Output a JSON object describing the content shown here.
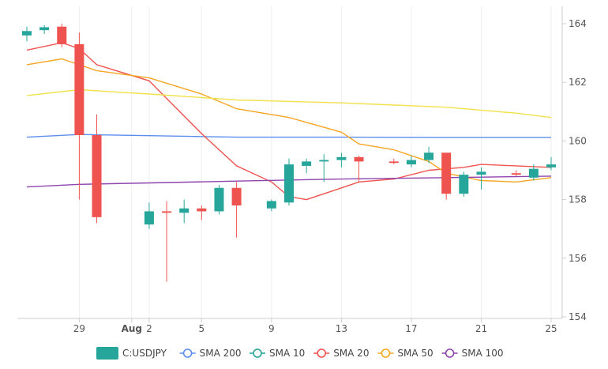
{
  "chart_data": {
    "type": "candlestick",
    "x_axis": {
      "tick_labels": [
        {
          "d": 29,
          "label": "29"
        },
        {
          "d": 32,
          "label": "Aug"
        },
        {
          "d": 33,
          "label": "2"
        },
        {
          "d": 36,
          "label": "5"
        },
        {
          "d": 40,
          "label": "9"
        },
        {
          "d": 44,
          "label": "13"
        },
        {
          "d": 48,
          "label": "17"
        },
        {
          "d": 52,
          "label": "21"
        },
        {
          "d": 56,
          "label": "25"
        }
      ]
    },
    "y_axis": {
      "range": [
        154,
        164.5
      ],
      "ticks": [
        154,
        156,
        158,
        160,
        162,
        164
      ],
      "position": "right"
    },
    "grid": "vertical",
    "legend_position": "bottom",
    "candles": [
      {
        "d": 26,
        "o": 163.6,
        "h": 163.9,
        "l": 163.4,
        "c": 163.75
      },
      {
        "d": 27,
        "o": 163.78,
        "h": 163.95,
        "l": 163.65,
        "c": 163.88
      },
      {
        "d": 28,
        "o": 163.9,
        "h": 164.0,
        "l": 163.2,
        "c": 163.3
      },
      {
        "d": 29,
        "o": 163.3,
        "h": 163.7,
        "l": 158.0,
        "c": 160.2
      },
      {
        "d": 30,
        "o": 160.2,
        "h": 160.9,
        "l": 157.2,
        "c": 157.4
      },
      {
        "d": 33,
        "o": 157.15,
        "h": 157.9,
        "l": 157.0,
        "c": 157.6
      },
      {
        "d": 34,
        "o": 157.6,
        "h": 157.95,
        "l": 155.2,
        "c": 157.55
      },
      {
        "d": 35,
        "o": 157.55,
        "h": 158.0,
        "l": 157.2,
        "c": 157.7
      },
      {
        "d": 36,
        "o": 157.7,
        "h": 157.8,
        "l": 157.3,
        "c": 157.6
      },
      {
        "d": 37,
        "o": 157.6,
        "h": 158.5,
        "l": 157.5,
        "c": 158.4
      },
      {
        "d": 38,
        "o": 158.4,
        "h": 158.6,
        "l": 156.7,
        "c": 157.8
      },
      {
        "d": 40,
        "o": 157.7,
        "h": 158.0,
        "l": 157.6,
        "c": 157.95
      },
      {
        "d": 41,
        "o": 157.9,
        "h": 159.4,
        "l": 157.8,
        "c": 159.2
      },
      {
        "d": 42,
        "o": 159.15,
        "h": 159.4,
        "l": 158.9,
        "c": 159.3
      },
      {
        "d": 43,
        "o": 159.3,
        "h": 159.55,
        "l": 158.6,
        "c": 159.35
      },
      {
        "d": 44,
        "o": 159.35,
        "h": 159.6,
        "l": 159.1,
        "c": 159.45
      },
      {
        "d": 45,
        "o": 159.45,
        "h": 159.5,
        "l": 158.6,
        "c": 159.3
      },
      {
        "d": 47,
        "o": 159.3,
        "h": 159.4,
        "l": 159.2,
        "c": 159.25
      },
      {
        "d": 48,
        "o": 159.2,
        "h": 159.5,
        "l": 159.1,
        "c": 159.35
      },
      {
        "d": 49,
        "o": 159.35,
        "h": 159.8,
        "l": 159.25,
        "c": 159.6
      },
      {
        "d": 50,
        "o": 159.6,
        "h": 159.6,
        "l": 158.0,
        "c": 158.2
      },
      {
        "d": 51,
        "o": 158.2,
        "h": 158.95,
        "l": 158.1,
        "c": 158.85
      },
      {
        "d": 52,
        "o": 158.85,
        "h": 159.1,
        "l": 158.35,
        "c": 158.95
      },
      {
        "d": 54,
        "o": 158.9,
        "h": 159.0,
        "l": 158.8,
        "c": 158.85
      },
      {
        "d": 55,
        "o": 158.75,
        "h": 159.2,
        "l": 158.65,
        "c": 159.05
      },
      {
        "d": 56,
        "o": 159.1,
        "h": 159.45,
        "l": 159.0,
        "c": 159.2
      }
    ],
    "series": [
      {
        "name": "SMA 200",
        "color": "#5b8def",
        "points": [
          [
            26,
            160.13
          ],
          [
            29,
            160.22
          ],
          [
            33,
            160.18
          ],
          [
            38,
            160.13
          ],
          [
            44,
            160.13
          ],
          [
            50,
            160.12
          ],
          [
            56,
            160.12
          ]
        ]
      },
      {
        "name": "SMA 10",
        "color": "#26a69a",
        "points": []
      },
      {
        "name": "SMA 20",
        "color": "#ef5350",
        "points": [
          [
            26,
            163.1
          ],
          [
            28,
            163.35
          ],
          [
            29,
            163.15
          ],
          [
            30,
            162.6
          ],
          [
            33,
            162.05
          ],
          [
            36,
            160.25
          ],
          [
            38,
            159.15
          ],
          [
            40,
            158.6
          ],
          [
            41,
            158.1
          ],
          [
            42,
            158.0
          ],
          [
            44,
            158.4
          ],
          [
            45,
            158.6
          ],
          [
            47,
            158.7
          ],
          [
            49,
            159.0
          ],
          [
            51,
            159.1
          ],
          [
            52,
            159.2
          ],
          [
            56,
            159.1
          ]
        ]
      },
      {
        "name": "SMA 50",
        "color": "#f5a623",
        "points": [
          [
            26,
            162.6
          ],
          [
            28,
            162.8
          ],
          [
            30,
            162.4
          ],
          [
            33,
            162.15
          ],
          [
            36,
            161.6
          ],
          [
            38,
            161.1
          ],
          [
            41,
            160.8
          ],
          [
            44,
            160.3
          ],
          [
            45,
            159.9
          ],
          [
            47,
            159.7
          ],
          [
            49,
            159.3
          ],
          [
            50,
            158.9
          ],
          [
            52,
            158.65
          ],
          [
            54,
            158.6
          ],
          [
            56,
            158.75
          ]
        ]
      },
      {
        "name": "SMA 100",
        "color": "#8e44ad",
        "points": [
          [
            26,
            158.43
          ],
          [
            29,
            158.52
          ],
          [
            33,
            158.57
          ],
          [
            38,
            158.63
          ],
          [
            44,
            158.7
          ],
          [
            50,
            158.75
          ],
          [
            56,
            158.8
          ]
        ]
      },
      {
        "name": "SMA 50 (yellow)",
        "color": "#f2e14a",
        "points": [
          [
            26,
            161.55
          ],
          [
            29,
            161.75
          ],
          [
            33,
            161.6
          ],
          [
            38,
            161.4
          ],
          [
            44,
            161.3
          ],
          [
            50,
            161.15
          ],
          [
            54,
            160.95
          ],
          [
            56,
            160.8
          ]
        ],
        "legend": false
      }
    ],
    "legend": [
      {
        "label": "C:USDJPY",
        "kind": "box",
        "color": "#26a69a"
      },
      {
        "label": "SMA 200",
        "kind": "line",
        "color": "#5b8def"
      },
      {
        "label": "SMA 10",
        "kind": "line",
        "color": "#26a69a"
      },
      {
        "label": "SMA 20",
        "kind": "line",
        "color": "#ef5350"
      },
      {
        "label": "SMA 50",
        "kind": "line",
        "color": "#f5a623"
      },
      {
        "label": "SMA 100",
        "kind": "line",
        "color": "#8e44ad"
      }
    ],
    "colors": {
      "up": "#26a69a",
      "down": "#ef5350",
      "grid": "#eeeeee",
      "axis": "#cccccc"
    }
  }
}
